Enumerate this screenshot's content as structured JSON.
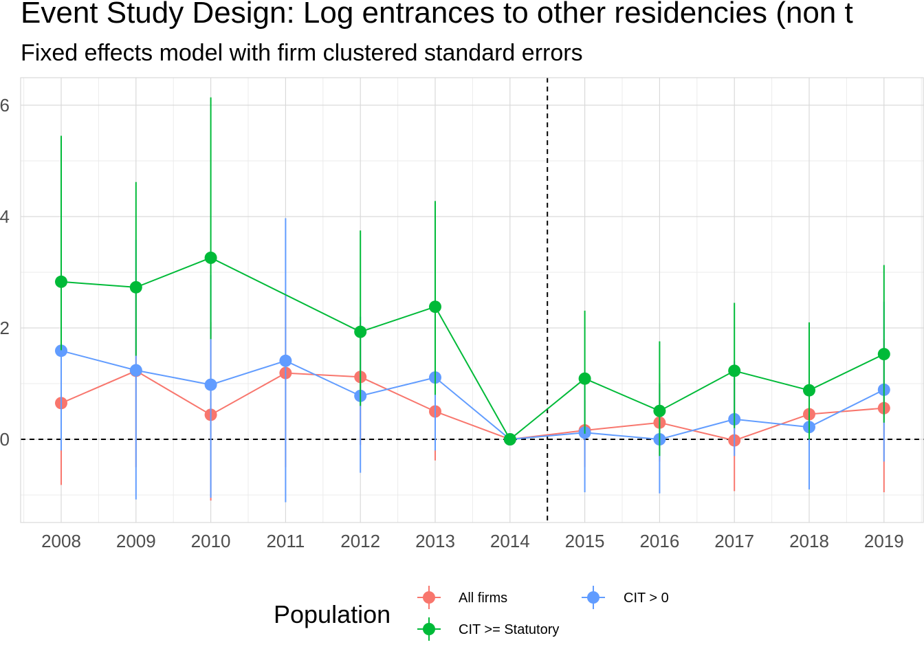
{
  "chart_data": {
    "type": "line",
    "title": "Event Study Design: Log entrances to other residencies (non t",
    "subtitle": "Fixed effects model with firm clustered standard errors",
    "xlabel": "",
    "ylabel": "",
    "x": [
      "2008",
      "2009",
      "2010",
      "2011",
      "2012",
      "2013",
      "2014",
      "2015",
      "2016",
      "2017",
      "2018",
      "2019"
    ],
    "y_ticks": [
      "0",
      "2",
      "4",
      "6"
    ],
    "y_tick_values": [
      0,
      2,
      4,
      6
    ],
    "ylim": [
      -1.5,
      6.5
    ],
    "reference_lines": {
      "horizontal": 0,
      "vertical": 2014.5
    },
    "grid": true,
    "legend": {
      "title": "Population",
      "position": "bottom"
    },
    "series": [
      {
        "name": "All firms",
        "color": "#F8766D",
        "values": [
          0.65,
          1.23,
          0.44,
          1.19,
          1.12,
          0.5,
          0.0,
          0.16,
          0.3,
          -0.02,
          0.45,
          0.56
        ],
        "lower": [
          -0.82,
          -0.5,
          -1.1,
          -0.5,
          -0.1,
          -0.38,
          0.0,
          -0.5,
          -0.4,
          -0.93,
          -0.3,
          -0.95
        ],
        "upper": [
          1.3,
          2.7,
          2.1,
          2.6,
          2.0,
          1.4,
          0.0,
          0.7,
          1.0,
          1.1,
          1.2,
          1.8
        ]
      },
      {
        "name": "CIT > 0",
        "color": "#619CFF",
        "values": [
          1.59,
          1.24,
          0.98,
          1.41,
          0.78,
          1.11,
          0.0,
          0.12,
          0.0,
          0.36,
          0.22,
          0.89
        ],
        "lower": [
          -0.2,
          -1.08,
          -1.05,
          -1.13,
          -0.6,
          -0.2,
          0.0,
          -0.95,
          -0.97,
          -0.3,
          -0.9,
          -0.4
        ],
        "upper": [
          3.2,
          3.58,
          2.95,
          3.97,
          2.2,
          2.4,
          0.0,
          1.1,
          1.0,
          1.4,
          1.4,
          2.47
        ]
      },
      {
        "name": "CIT >= Statutory",
        "color": "#00BA38",
        "values": [
          2.83,
          2.73,
          3.26,
          null,
          1.93,
          2.38,
          0.0,
          1.09,
          0.51,
          1.23,
          0.88,
          1.53
        ],
        "lower": [
          1.6,
          1.5,
          1.8,
          null,
          0.6,
          0.8,
          0.0,
          0.1,
          -0.3,
          0.2,
          0.0,
          0.3
        ],
        "upper": [
          5.45,
          4.62,
          6.14,
          null,
          3.75,
          4.28,
          0.0,
          2.31,
          1.76,
          2.45,
          2.1,
          3.13
        ]
      }
    ]
  }
}
